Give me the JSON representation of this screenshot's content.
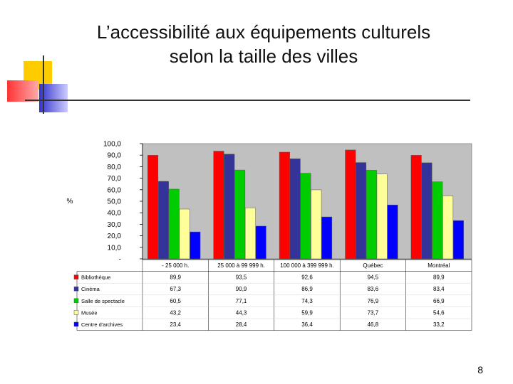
{
  "slide": {
    "title_line1": "L’accessibilité aux équipements culturels",
    "title_line2": "selon la taille des villes",
    "page_number": "8"
  },
  "chart_data": {
    "type": "bar",
    "ylabel": "%",
    "ylim": [
      0,
      100
    ],
    "yticks": [
      "-",
      "10,0",
      "20,0",
      "30,0",
      "40,0",
      "50,0",
      "60,0",
      "70,0",
      "80,0",
      "90,0",
      "100,0"
    ],
    "categories": [
      "- 25 000 h.",
      "25 000 à 99 999 h.",
      "100 000 à 399 999 h.",
      "Québec",
      "Montréal"
    ],
    "series": [
      {
        "name": "Bibliothèque",
        "color": "#ff0000",
        "values": [
          89.9,
          93.5,
          92.6,
          94.5,
          89.9
        ],
        "labels": [
          "89,9",
          "93,5",
          "92,6",
          "94,5",
          "89,9"
        ]
      },
      {
        "name": "Cinéma",
        "color": "#333399",
        "values": [
          67.3,
          90.9,
          86.9,
          83.6,
          83.4
        ],
        "labels": [
          "67,3",
          "90,9",
          "86,9",
          "83,6",
          "83,4"
        ]
      },
      {
        "name": "Salle de spectacle",
        "color": "#00cc00",
        "values": [
          60.5,
          77.1,
          74.3,
          76.9,
          66.9
        ],
        "labels": [
          "60,5",
          "77,1",
          "74,3",
          "76,9",
          "66,9"
        ]
      },
      {
        "name": "Musée",
        "color": "#ffff99",
        "values": [
          43.2,
          44.3,
          59.9,
          73.7,
          54.6
        ],
        "labels": [
          "43,2",
          "44,3",
          "59,9",
          "73,7",
          "54,6"
        ]
      },
      {
        "name": "Centre d'archives",
        "color": "#0000ff",
        "values": [
          23.4,
          28.4,
          36.4,
          46.8,
          33.2
        ],
        "labels": [
          "23,4",
          "28,4",
          "36,4",
          "46,8",
          "33,2"
        ]
      }
    ]
  }
}
